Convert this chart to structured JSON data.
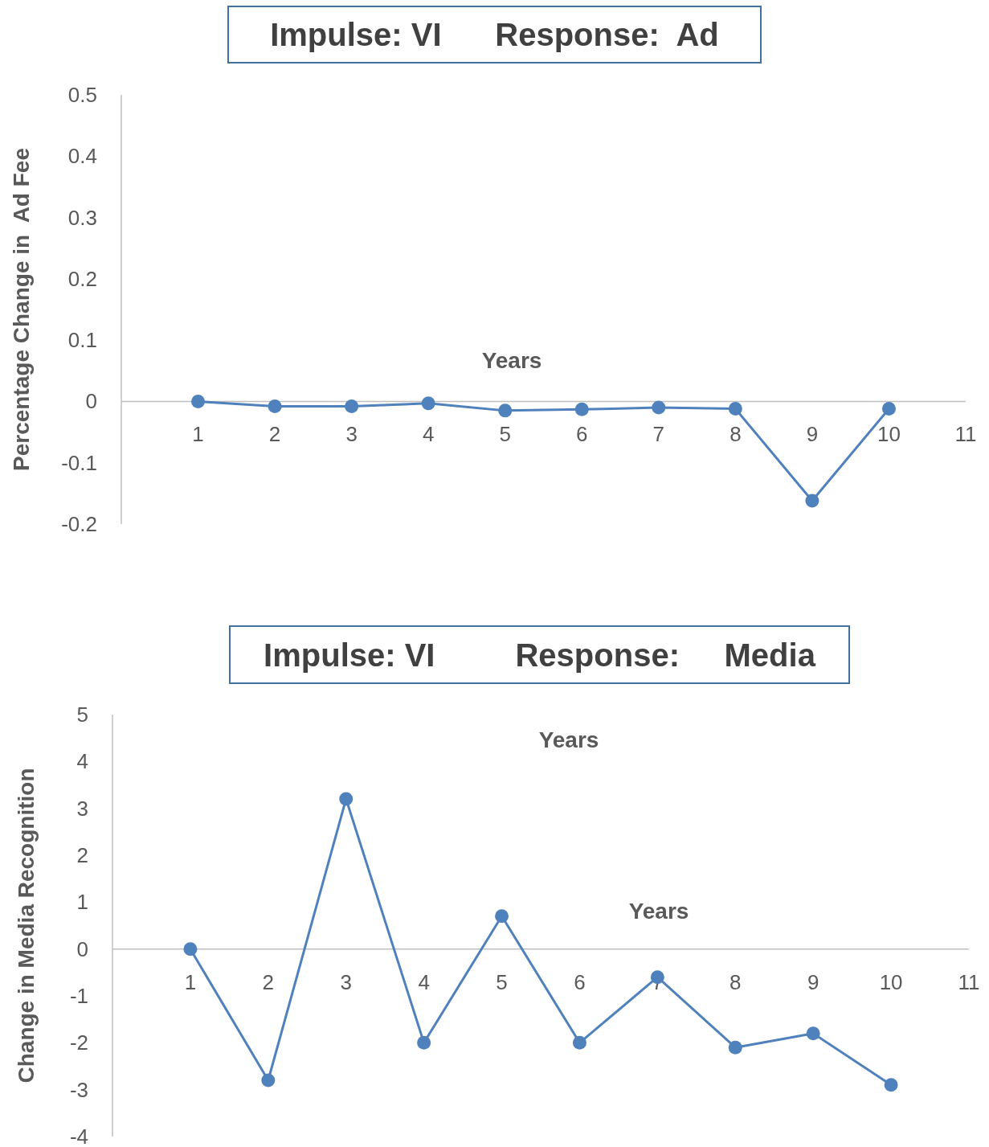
{
  "chart_data": [
    {
      "type": "line",
      "title": "Impulse: VI      Response:  Ad",
      "ylabel": "Percentage Change in  Ad Fee",
      "xlabel": "Years",
      "x": [
        1,
        2,
        3,
        4,
        5,
        6,
        7,
        8,
        9,
        10
      ],
      "series": [
        {
          "color": "#4f81bd",
          "values": [
            0,
            -0.008,
            -0.008,
            -0.003,
            -0.015,
            -0.013,
            -0.01,
            -0.012,
            -0.162,
            -0.012
          ]
        }
      ],
      "xlim": [
        0,
        11
      ],
      "xticks": [
        1,
        2,
        3,
        4,
        5,
        6,
        7,
        8,
        9,
        10,
        11
      ],
      "ylim": [
        -0.2,
        0.5
      ],
      "yticks": [
        -0.2,
        -0.1,
        0,
        0.1,
        0.2,
        0.3,
        0.4,
        0.5
      ],
      "grid": false,
      "marker": "circle",
      "line_style": "solid"
    },
    {
      "type": "line",
      "title": "Impulse: VI         Response:     Media",
      "ylabel": "Change in Media Recognition",
      "xlabel": "Years",
      "annotations": [
        "Years"
      ],
      "x": [
        1,
        2,
        3,
        4,
        5,
        6,
        7,
        8,
        9,
        10
      ],
      "series": [
        {
          "color": "#4f81bd",
          "values": [
            0,
            -2.8,
            3.2,
            -2,
            0.7,
            -2,
            -0.6,
            -2.1,
            -1.8,
            -2.9
          ]
        }
      ],
      "xlim": [
        0,
        11
      ],
      "xticks": [
        1,
        2,
        3,
        4,
        5,
        6,
        7,
        8,
        9,
        10,
        11
      ],
      "ylim": [
        -4,
        5
      ],
      "yticks": [
        -4,
        -3,
        -2,
        -1,
        0,
        1,
        2,
        3,
        4,
        5
      ],
      "grid": false,
      "marker": "circle",
      "line_style": "solid"
    }
  ]
}
